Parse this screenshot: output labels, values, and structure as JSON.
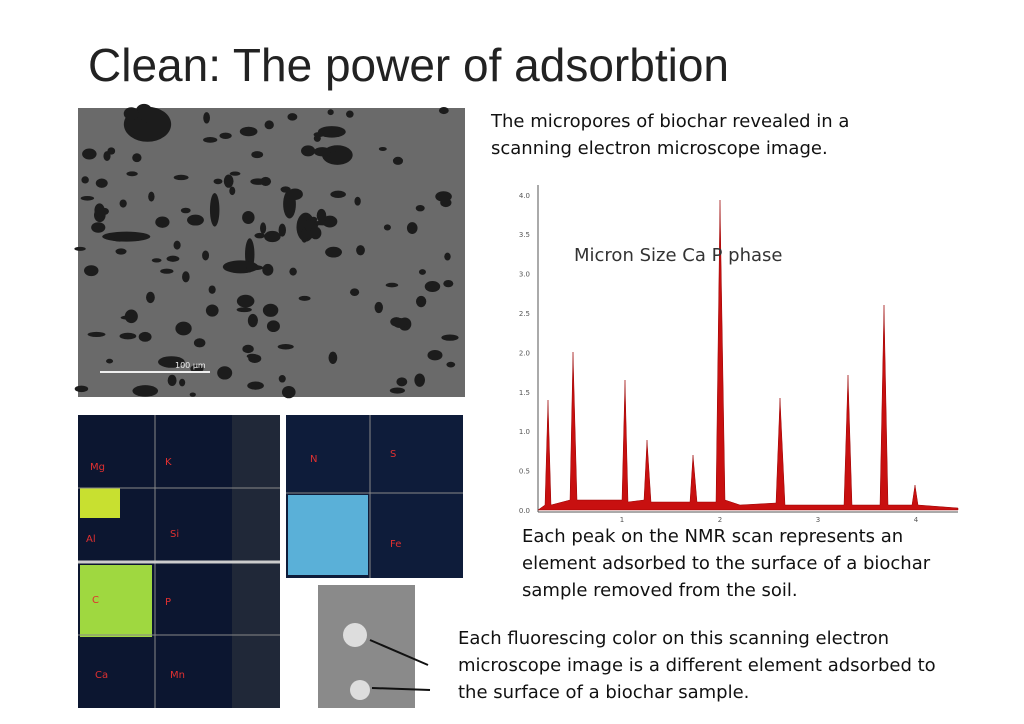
{
  "title": "Clean: The power of adsorbtion",
  "captions": [
    "The micropores of biochar revealed in a scanning electron microscope image.",
    "Each peak on the NMR scan represents an element adsorbed to the surface of a biochar sample removed from the soil.",
    "Each fluorescing color on this scanning electron microscope image is a different element adsorbed to the surface of a biochar sample."
  ],
  "sem_image": {
    "scale_bar": "100 µm"
  },
  "spectrum": {
    "title": "Micron Size Ca P phase",
    "yticks": [
      "0.0",
      "0.5",
      "1.0",
      "1.5",
      "2.0",
      "2.5",
      "3.0",
      "3.5",
      "4.0"
    ],
    "xticks": [
      "1",
      "2",
      "3",
      "4"
    ]
  },
  "element_map": {
    "labels": [
      "Mg",
      "K",
      "Al",
      "Si",
      "C",
      "P",
      "Ca",
      "Mn",
      "N",
      "S",
      "Fe"
    ]
  }
}
